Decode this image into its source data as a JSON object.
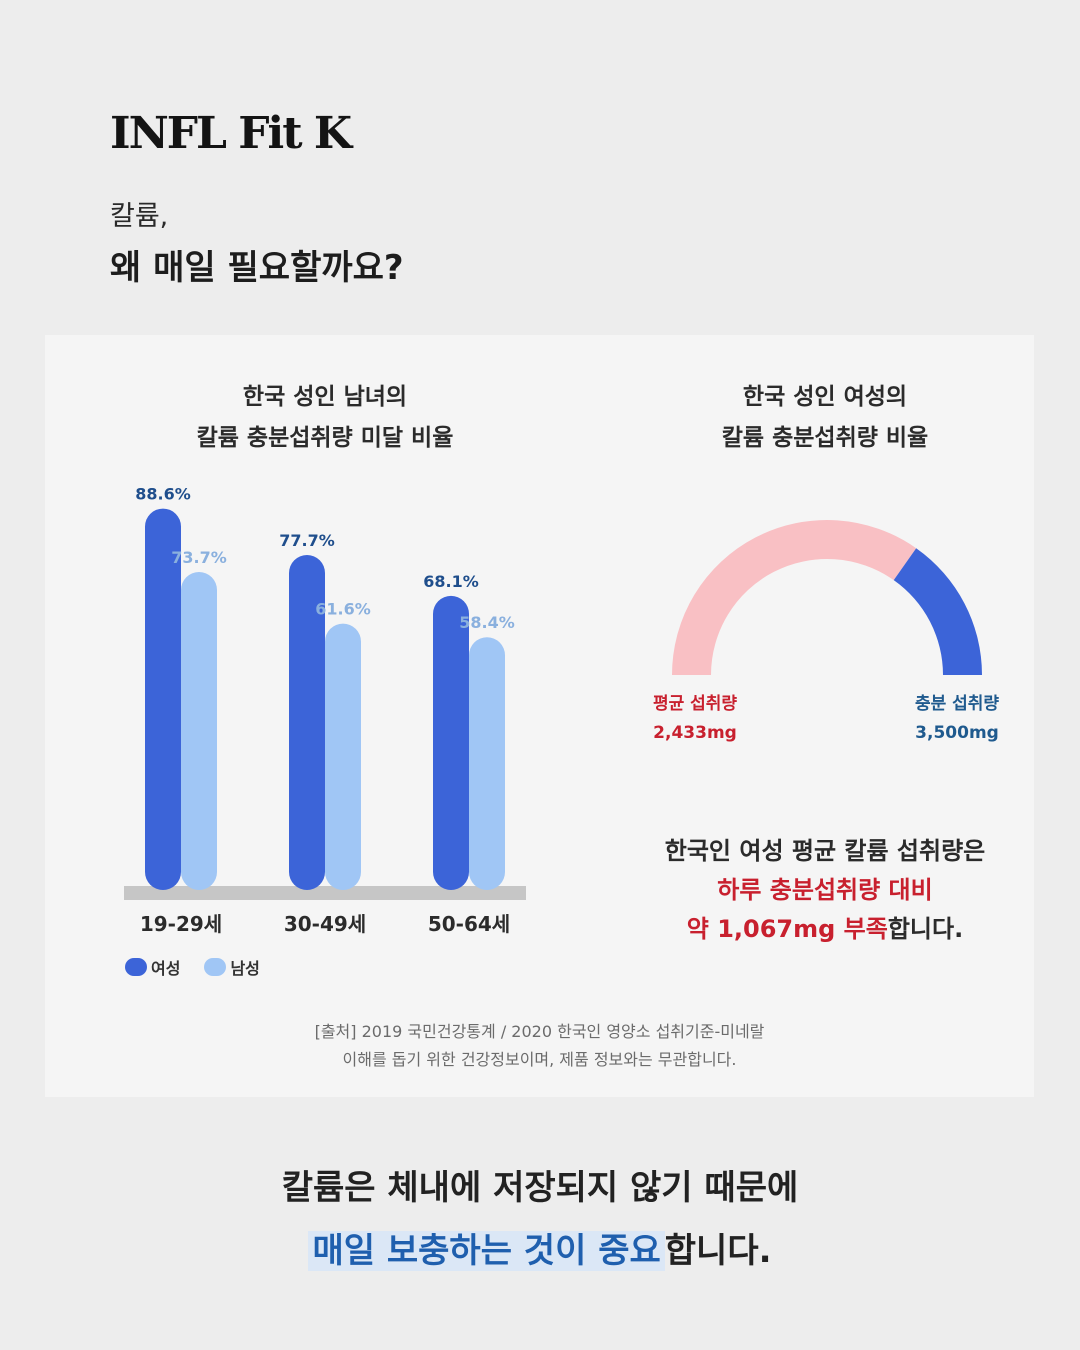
{
  "brand": "INFL Fit K",
  "headline": {
    "line1": "칼륨,",
    "line2": "왜 매일 필요할까요?"
  },
  "colors": {
    "female": "#3c64d8",
    "male": "#a0c6f5",
    "deficit": "#c8202e",
    "sufficient": "#1f5a8e",
    "gauge_pink": "#f9c0c4",
    "gauge_blue": "#3c64d8"
  },
  "bar_chart": {
    "title_line1": "한국 성인 남녀의",
    "title_line2": "칼륨 충분섭취량 미달 비율"
  },
  "gauge_chart": {
    "title_line1": "한국 성인 여성의",
    "title_line2": "칼륨 충분섭취량 비율",
    "left_label": "평균 섭취량",
    "left_value": "2,433mg",
    "right_label": "충분 섭취량",
    "right_value": "3,500mg"
  },
  "summary": {
    "line1": "한국인 여성 평균 칼륨 섭취량은",
    "line2": "하루 충분섭취량 대비",
    "line3_red": "약 1,067mg 부족",
    "line3_rest": "합니다."
  },
  "source": {
    "line1": "[출처] 2019 국민건강통계 / 2020 한국인 영양소 섭취기준-미네랄",
    "line2": "이해를 돕기 위한 건강정보이며, 제품 정보와는 무관합니다."
  },
  "bottom": {
    "line1": "칼륨은 체내에 저장되지 않기 때문에",
    "line2_highlight": "매일 보충하는 것이 중요",
    "line2_rest": "합니다."
  },
  "chart_data": [
    {
      "type": "bar",
      "title": "한국 성인 남녀의 칼륨 충분섭취량 미달 비율",
      "categories": [
        "19-29세",
        "30-49세",
        "50-64세"
      ],
      "series": [
        {
          "name": "여성",
          "values": [
            88.6,
            77.7,
            68.1
          ],
          "labels": [
            "88.6%",
            "77.7%",
            "68.1%"
          ]
        },
        {
          "name": "남성",
          "values": [
            73.7,
            61.6,
            58.4
          ],
          "labels": [
            "73.7%",
            "61.6%",
            "58.4%"
          ]
        }
      ],
      "ylim": [
        0,
        100
      ],
      "legend": "bottom-left",
      "grid": false
    },
    {
      "type": "pie",
      "title": "한국 성인 여성의 칼륨 충분섭취량 비율",
      "style": "half-donut gauge",
      "slices": [
        {
          "name": "평균 섭취량",
          "value": 2433,
          "label": "2,433mg"
        },
        {
          "name": "부족분",
          "value": 1067
        }
      ],
      "total": {
        "name": "충분 섭취량",
        "value": 3500,
        "label": "3,500mg"
      }
    }
  ]
}
